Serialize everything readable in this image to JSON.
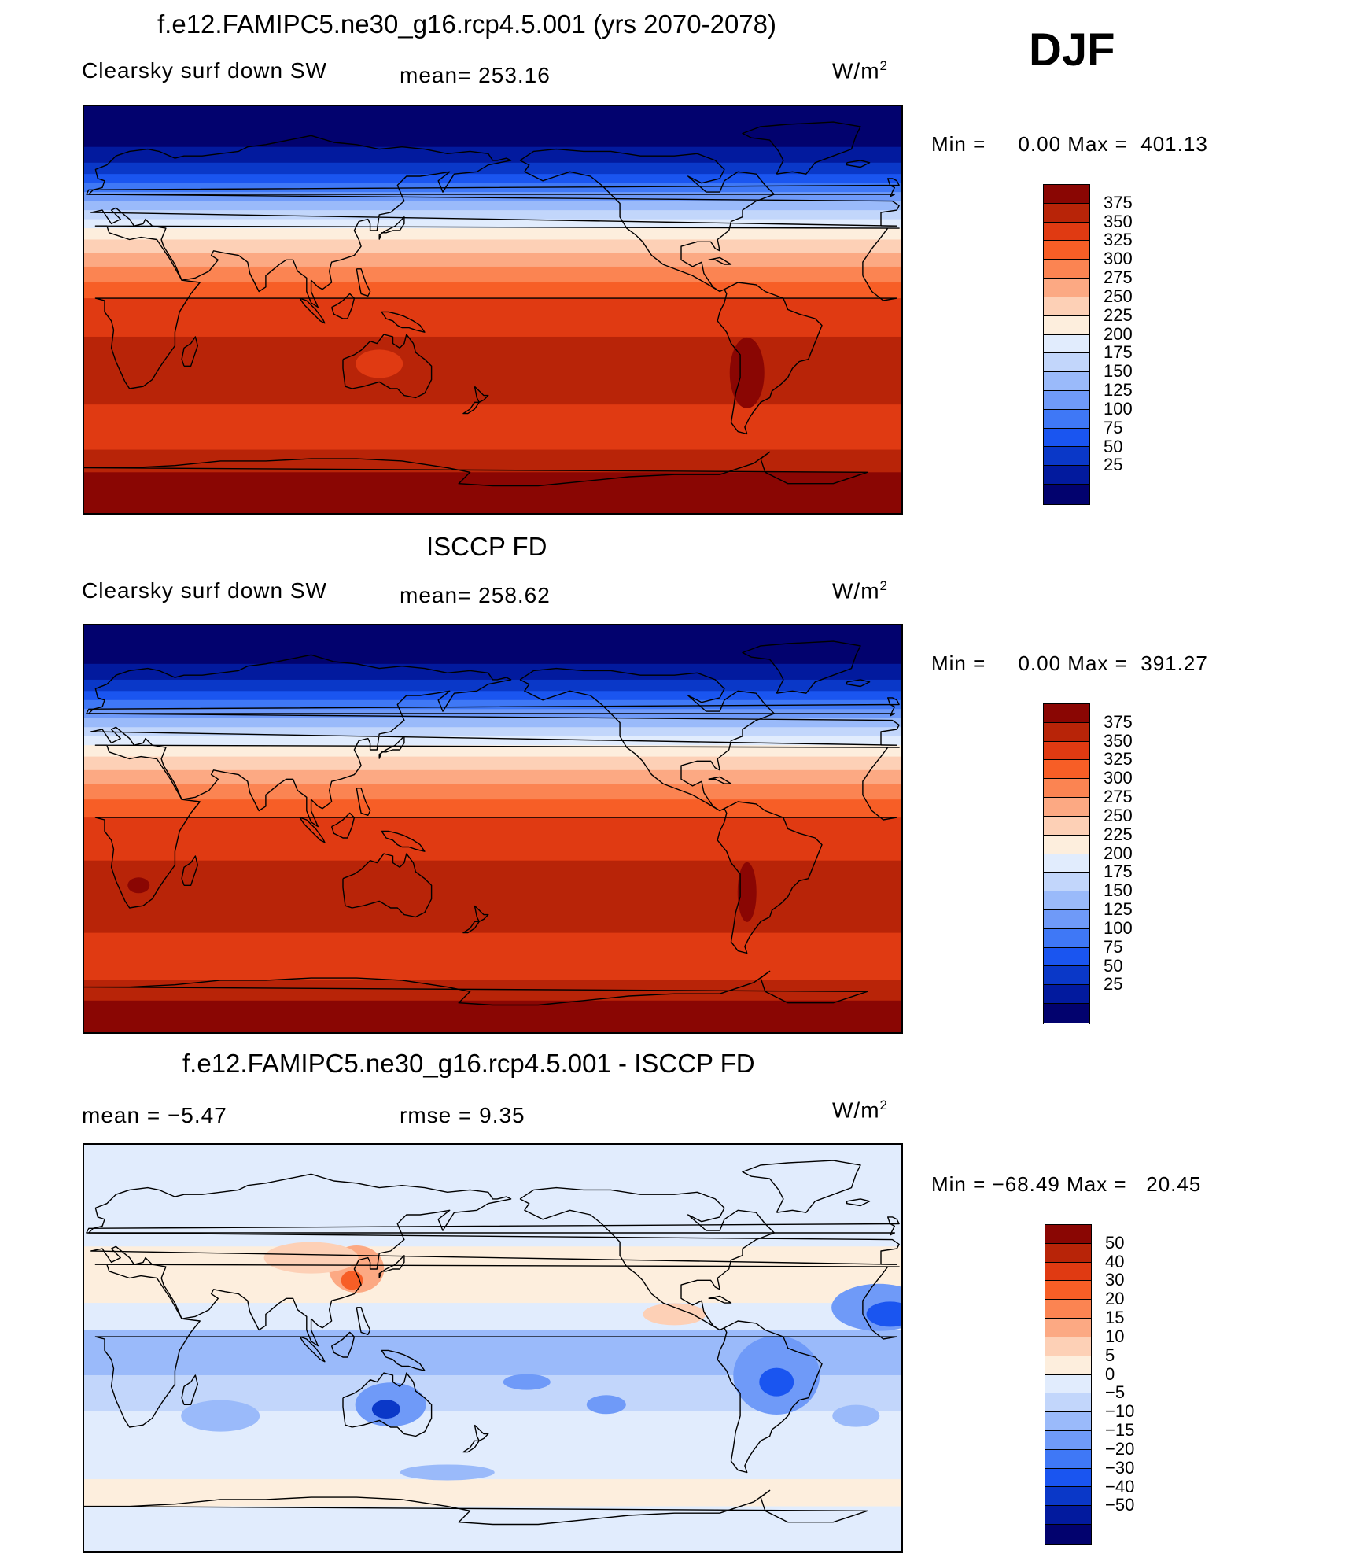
{
  "season": "DJF",
  "colors": {
    "abs_scale": [
      "#02026e",
      "#021a9e",
      "#0a38c8",
      "#1a55f0",
      "#3f78f6",
      "#6f9af8",
      "#9abafa",
      "#c2d6fb",
      "#e1ecfd",
      "#fdeedd",
      "#fdd0b6",
      "#fca983",
      "#fb8452",
      "#f75e26",
      "#e03a12",
      "#b82408",
      "#8a0603"
    ],
    "diff_scale": [
      "#02026e",
      "#021a9e",
      "#0a38c8",
      "#1a55f0",
      "#3f78f6",
      "#6f9af8",
      "#9abafa",
      "#c2d6fb",
      "#e1ecfd",
      "#fdeedd",
      "#fdd0b6",
      "#fca983",
      "#fb8452",
      "#f75e26",
      "#e03a12",
      "#b82408",
      "#8a0603"
    ]
  },
  "panels": [
    {
      "title": "f.e12.FAMIPC5.ne30_g16.rcp4.5.001 (yrs 2070-2078)",
      "left_label": "Clearsky surf down SW",
      "center_label": "mean= 253.16",
      "units": "W/m",
      "units_sup": "2",
      "min_label": "Min =",
      "min_value": "0.00",
      "max_label": "Max =",
      "max_value": "401.13",
      "kind": "model",
      "ticks": [
        "375",
        "350",
        "325",
        "300",
        "275",
        "250",
        "225",
        "200",
        "175",
        "150",
        "125",
        "100",
        "75",
        "50",
        "25"
      ]
    },
    {
      "title": "ISCCP FD",
      "left_label": "Clearsky surf down SW",
      "center_label": "mean= 258.62",
      "units": "W/m",
      "units_sup": "2",
      "min_label": "Min =",
      "min_value": "0.00",
      "max_label": "Max =",
      "max_value": "391.27",
      "kind": "obs",
      "ticks": [
        "375",
        "350",
        "325",
        "300",
        "275",
        "250",
        "225",
        "200",
        "175",
        "150",
        "125",
        "100",
        "75",
        "50",
        "25"
      ]
    },
    {
      "title": "f.e12.FAMIPC5.ne30_g16.rcp4.5.001 - ISCCP FD",
      "left_label": "mean =   −5.47",
      "center_label": "rmse =    9.35",
      "units": "W/m",
      "units_sup": "2",
      "min_label": "Min =",
      "min_value": "−68.49",
      "max_label": "Max =",
      "max_value": "20.45",
      "kind": "diff",
      "ticks": [
        "50",
        "40",
        "30",
        "20",
        "15",
        "10",
        "5",
        "0",
        "−5",
        "−10",
        "−15",
        "−20",
        "−30",
        "−40",
        "−50"
      ]
    }
  ]
}
